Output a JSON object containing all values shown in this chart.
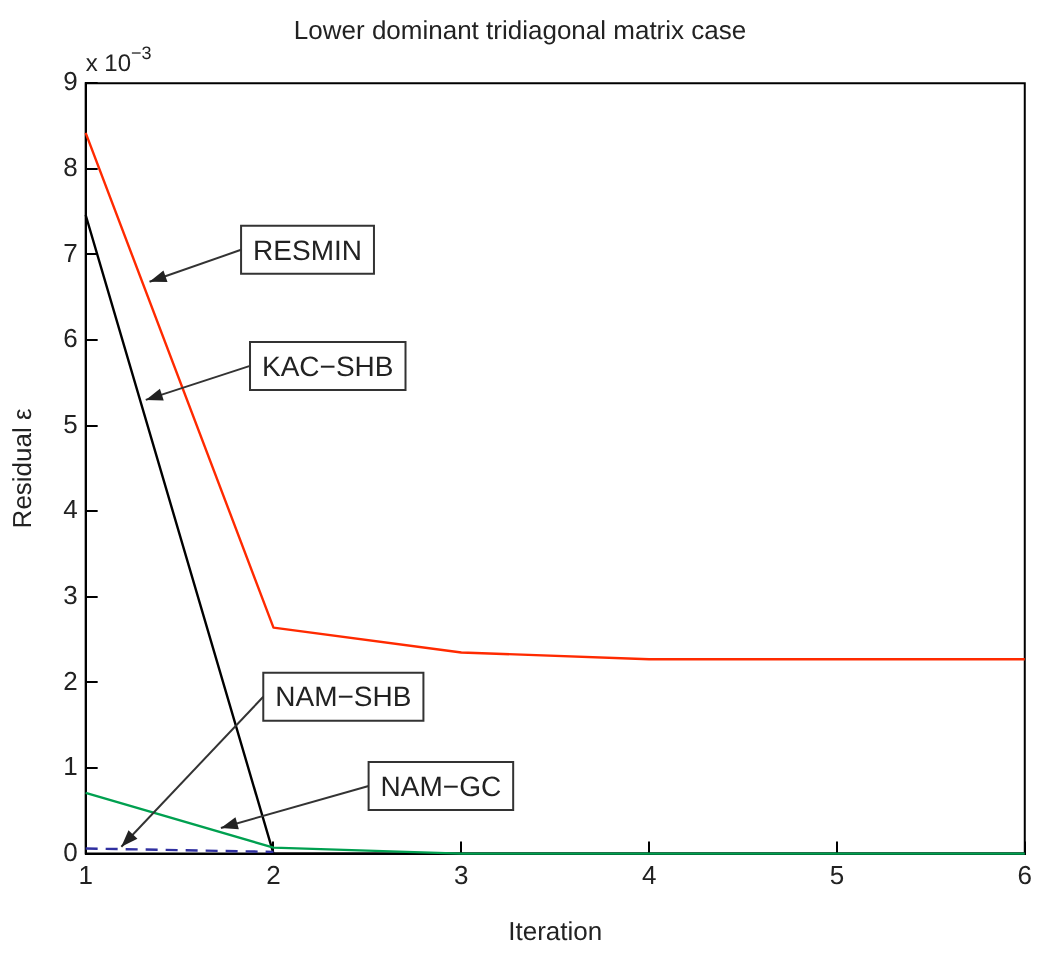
{
  "chart_data": {
    "type": "line",
    "title": "Lower dominant tridiagonal matrix case",
    "xlabel": "Iteration",
    "ylabel": "Residual ε",
    "x": [
      1,
      2,
      3,
      4,
      5,
      6
    ],
    "series": [
      {
        "color": "#ff2a00",
        "values": [
          8.42,
          2.64,
          2.35,
          2.27,
          2.27,
          2.27
        ]
      },
      {
        "color": "#000000",
        "values": [
          7.46,
          0,
          0,
          0,
          0,
          0
        ]
      },
      {
        "color": "#00a050",
        "values": [
          0.71,
          0.07,
          0,
          0,
          0,
          0
        ]
      },
      {
        "color": "#3030a0",
        "values": [
          0.06,
          0.02,
          null,
          null,
          null,
          null
        ],
        "line_style": "dashed"
      }
    ],
    "xlim": [
      1,
      6
    ],
    "xticks": [
      1,
      2,
      3,
      4,
      5,
      6
    ],
    "ylim": [
      0,
      9
    ],
    "yticks": [
      0,
      1,
      2,
      3,
      4,
      5,
      6,
      7,
      8,
      9
    ],
    "annotations": [
      "x 10$^{−3}$",
      {
        "text": "RESMIN",
        "x": 1.34,
        "y": 6.68
      },
      {
        "text": "KAC−SHB",
        "x": 1.32,
        "y": 5.3
      },
      {
        "text": "NAM−SHB",
        "x": 1.19,
        "y": 0.08
      },
      {
        "text": "NAM−GC",
        "x": 1.72,
        "y": 0.3
      }
    ],
    "grid": false,
    "legend": false,
    "marker": "none"
  }
}
